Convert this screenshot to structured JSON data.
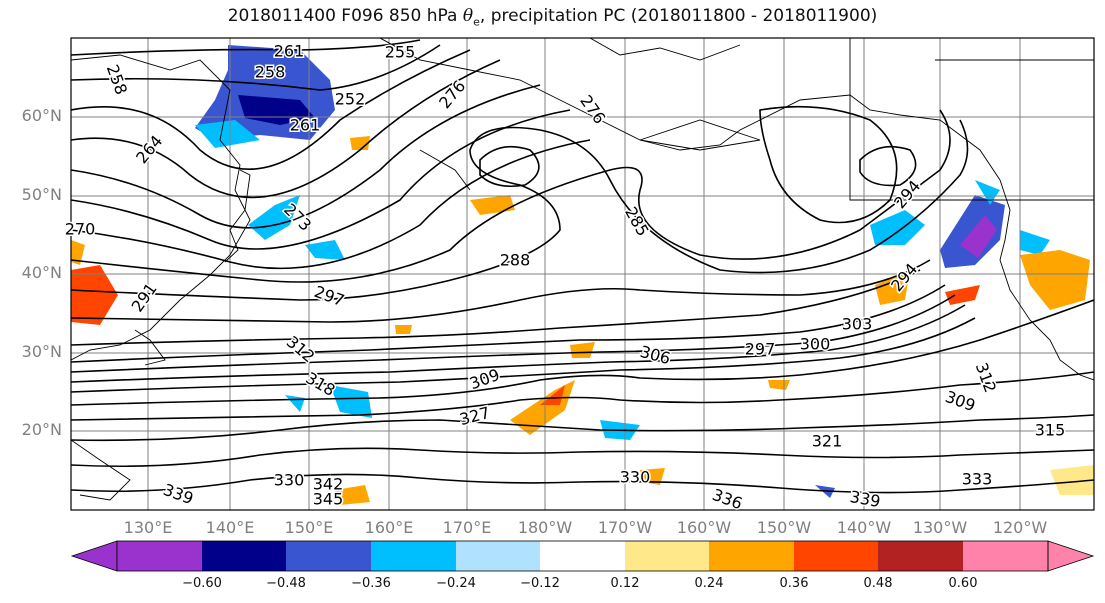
{
  "title": {
    "prefix": "2018011400 F096 850 hPa",
    "variable": "θ",
    "variable_sub": "e",
    "suffix": ", precipitation PC (2018011800 - 2018011900)"
  },
  "lat_labels": [
    "60°N",
    "50°N",
    "40°N",
    "30°N",
    "20°N"
  ],
  "lon_labels": [
    "130°E",
    "140°E",
    "150°E",
    "160°E",
    "170°E",
    "180°W",
    "170°W",
    "160°W",
    "150°W",
    "140°W",
    "130°W",
    "120°W"
  ],
  "contour_labels": [
    "261",
    "255",
    "258",
    "252",
    "261",
    "276",
    "258",
    "264",
    "270",
    "273",
    "276",
    "285",
    "291",
    "297",
    "288",
    "294",
    "294",
    "297",
    "300",
    "303",
    "306",
    "309",
    "312",
    "315",
    "312",
    "318",
    "327",
    "321",
    "309",
    "330",
    "342",
    "339",
    "345",
    "336",
    "339",
    "333",
    "330"
  ],
  "colorbar": {
    "ticks": [
      "−0.60",
      "−0.48",
      "−0.36",
      "−0.24",
      "−0.12",
      "0.12",
      "0.24",
      "0.36",
      "0.48",
      "0.60"
    ],
    "colors": [
      "#9a32cd",
      "#00008b",
      "#3a55d0",
      "#00bfff",
      "#b0e2ff",
      "#ffffff",
      "#ffe88a",
      "#ffa500",
      "#ff4500",
      "#b22222",
      "#ff82ab"
    ]
  },
  "legend_colors": {
    "neg_strong": "#3a55d0",
    "neg_dark": "#00008b",
    "neg_mid": "#00bfff",
    "neg_light": "#b0e2ff",
    "pos_light": "#ffe88a",
    "pos_mid": "#ffa500",
    "pos_strong": "#ff4500",
    "pos_dark": "#b22222",
    "neg_extreme": "#9a32cd"
  }
}
